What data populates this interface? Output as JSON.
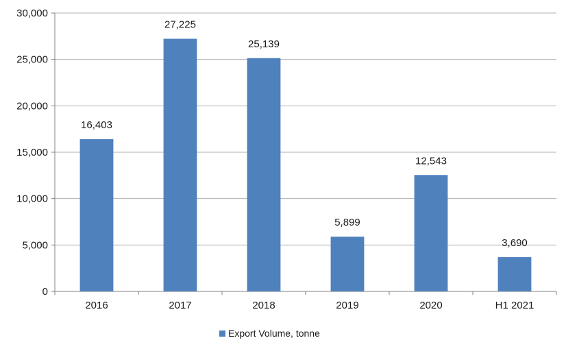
{
  "colors": {
    "bar": "#4f81bd",
    "axis": "#808080",
    "grid": "#b0b0b0",
    "text": "#1a1a1a"
  },
  "chart_data": {
    "type": "bar",
    "categories": [
      "2016",
      "2017",
      "2018",
      "2019",
      "2020",
      "H1 2021"
    ],
    "series": [
      {
        "name": "Export Volume, tonne",
        "values": [
          16403,
          27225,
          25139,
          5899,
          12543,
          3690
        ],
        "data_labels": [
          "16,403",
          "27,225",
          "25,139",
          "5,899",
          "12,543",
          "3,690"
        ]
      }
    ],
    "y_ticks": [
      0,
      5000,
      10000,
      15000,
      20000,
      25000,
      30000
    ],
    "y_tick_labels": [
      "0",
      "5,000",
      "10,000",
      "15,000",
      "20,000",
      "25,000",
      "30,000"
    ],
    "ylim": [
      0,
      30000
    ],
    "grid": true,
    "legend_position": "bottom-center",
    "title": "",
    "xlabel": "",
    "ylabel": ""
  }
}
